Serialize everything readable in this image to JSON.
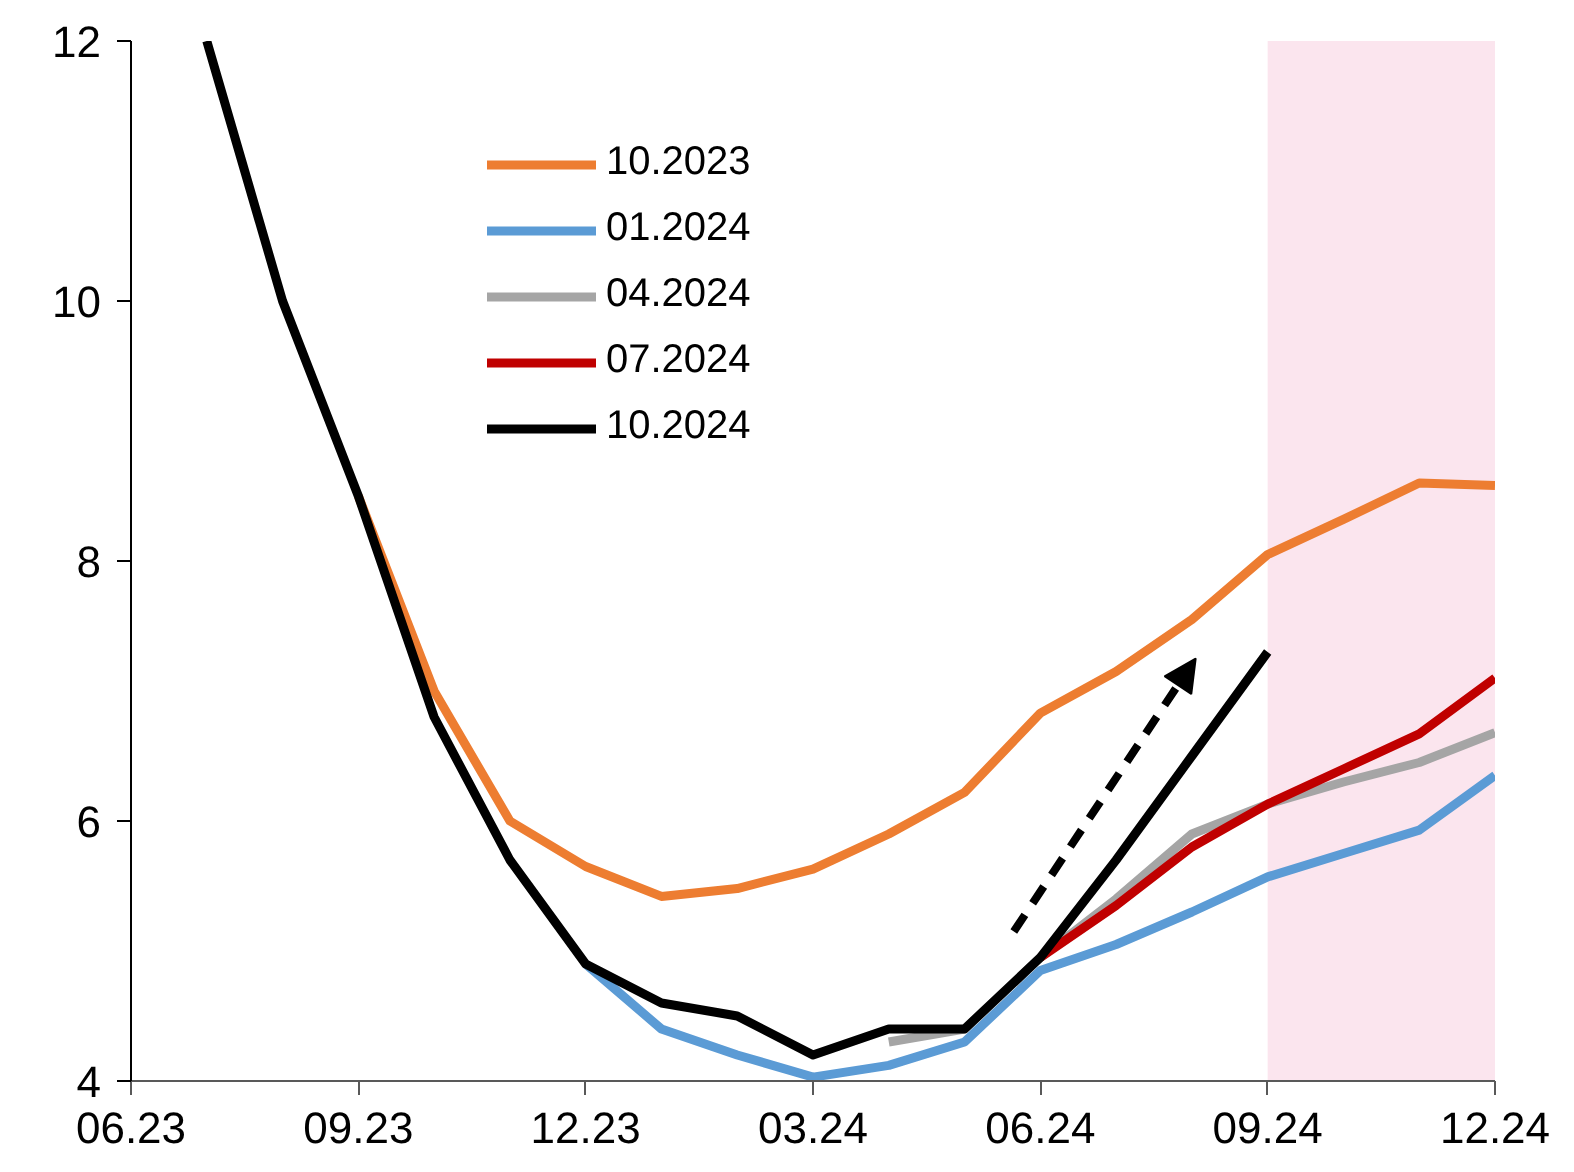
{
  "chart_data": {
    "type": "line",
    "x": [
      "2023-07",
      "2023-08",
      "2023-09",
      "2023-10",
      "2023-11",
      "2023-12",
      "2024-01",
      "2024-02",
      "2024-03",
      "2024-04",
      "2024-05",
      "2024-06",
      "2024-07",
      "2024-08",
      "2024-09",
      "2024-10",
      "2024-11",
      "2024-12"
    ],
    "series": [
      {
        "name": "10.2023",
        "color": "#ed7d31",
        "values": [
          null,
          null,
          8.5,
          7.0,
          6.0,
          5.65,
          5.42,
          5.48,
          5.63,
          5.9,
          6.22,
          6.83,
          7.15,
          7.55,
          8.05,
          8.32,
          8.6,
          8.58
        ]
      },
      {
        "name": "01.2024",
        "color": "#5b9bd5",
        "values": [
          null,
          null,
          null,
          null,
          null,
          4.9,
          4.4,
          4.2,
          4.03,
          4.12,
          4.3,
          4.85,
          5.05,
          5.3,
          5.57,
          5.75,
          5.93,
          6.35
        ]
      },
      {
        "name": "04.2024",
        "color": "#a5a5a5",
        "values": [
          null,
          null,
          null,
          null,
          null,
          null,
          null,
          null,
          null,
          4.3,
          4.4,
          4.95,
          5.4,
          5.9,
          6.13,
          6.3,
          6.45,
          6.68
        ]
      },
      {
        "name": "07.2024",
        "color": "#c00000",
        "values": [
          null,
          null,
          null,
          null,
          null,
          null,
          null,
          null,
          null,
          null,
          null,
          4.95,
          5.35,
          5.8,
          6.13,
          6.4,
          6.67,
          7.1
        ]
      },
      {
        "name": "10.2024",
        "color": "#000000",
        "values": [
          12.0,
          10.0,
          8.5,
          6.8,
          5.7,
          4.9,
          4.6,
          4.5,
          4.2,
          4.4,
          4.4,
          4.95,
          5.7,
          6.5,
          7.3,
          null,
          null,
          null
        ]
      }
    ],
    "xlim": [
      "2023-06",
      "2024-12"
    ],
    "xticks": [
      {
        "value": "2023-06",
        "label": "06.23"
      },
      {
        "value": "2023-09",
        "label": "09.23"
      },
      {
        "value": "2023-12",
        "label": "12.23"
      },
      {
        "value": "2024-03",
        "label": "03.24"
      },
      {
        "value": "2024-06",
        "label": "06.24"
      },
      {
        "value": "2024-09",
        "label": "09.24"
      },
      {
        "value": "2024-12",
        "label": "12.24"
      }
    ],
    "ylim": [
      4,
      12
    ],
    "yticks": [
      4,
      6,
      8,
      10,
      12
    ],
    "bands": [
      {
        "axis": "x",
        "from": "2024-09",
        "to": "2024-12",
        "color": "#fbe5ee"
      }
    ],
    "grid": false,
    "legend": "top left",
    "line_style": "solid",
    "marker": "none"
  }
}
